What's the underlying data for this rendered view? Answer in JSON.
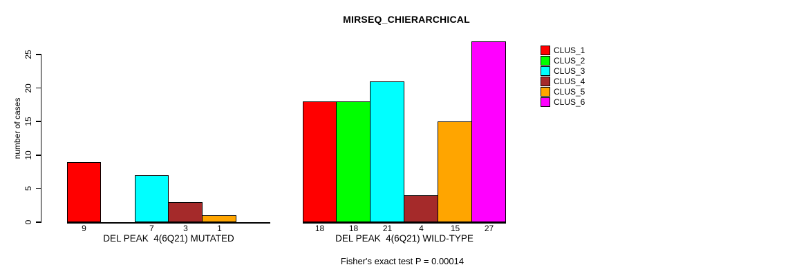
{
  "title": "MIRSEQ_CHIERARCHICAL",
  "ylabel": "number of cases",
  "footer": "Fisher's exact test P = 0.00014",
  "chart_data": {
    "type": "bar",
    "title": "MIRSEQ_CHIERARCHICAL",
    "ylabel": "number of cases",
    "xlabel": "",
    "ylim": [
      0,
      27
    ],
    "yticks": [
      0,
      5,
      10,
      15,
      20,
      25
    ],
    "grid": false,
    "legend_position": "right",
    "legend": [
      {
        "label": "CLUS_1",
        "color": "#FF0000"
      },
      {
        "label": "CLUS_2",
        "color": "#00FF00"
      },
      {
        "label": "CLUS_3",
        "color": "#00FFFF"
      },
      {
        "label": "CLUS_4",
        "color": "#A52A2A"
      },
      {
        "label": "CLUS_5",
        "color": "#FFA500"
      },
      {
        "label": "CLUS_6",
        "color": "#FF00FF"
      }
    ],
    "groups": [
      {
        "label": "DEL PEAK  4(6Q21) MUTATED",
        "series": [
          "CLUS_1",
          "CLUS_2",
          "CLUS_3",
          "CLUS_4",
          "CLUS_5",
          "CLUS_6"
        ],
        "values": [
          9,
          0,
          7,
          3,
          1,
          0
        ],
        "bar_labels": [
          "9",
          "",
          "7",
          "3",
          "1",
          ""
        ]
      },
      {
        "label": "DEL PEAK  4(6Q21) WILD-TYPE",
        "series": [
          "CLUS_1",
          "CLUS_2",
          "CLUS_3",
          "CLUS_4",
          "CLUS_5",
          "CLUS_6"
        ],
        "values": [
          18,
          18,
          21,
          4,
          15,
          27
        ],
        "bar_labels": [
          "18",
          "18",
          "21",
          "4",
          "15",
          "27"
        ]
      }
    ],
    "annotation": "Fisher's exact test P = 0.00014"
  }
}
